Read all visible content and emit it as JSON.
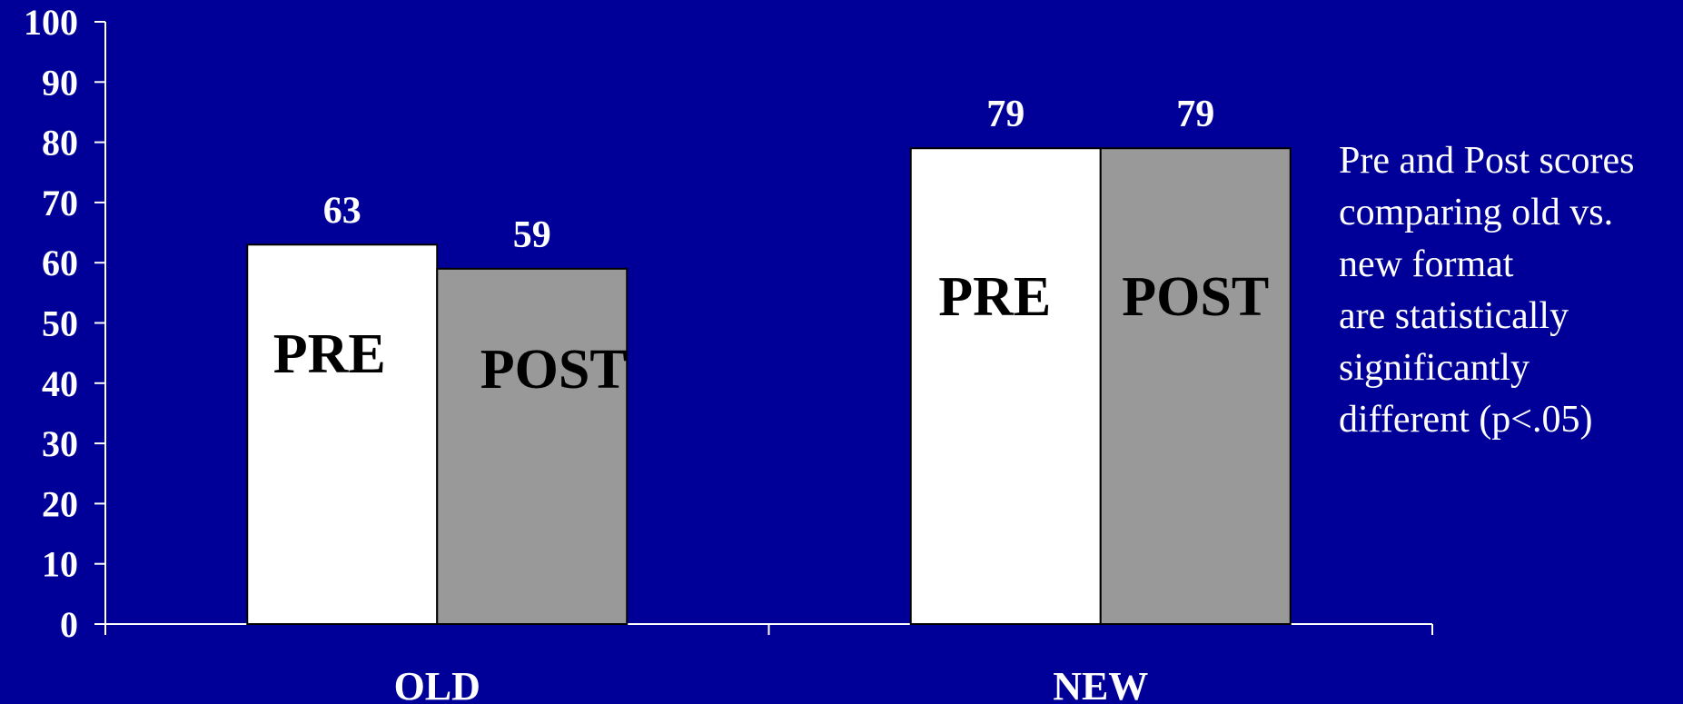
{
  "colors": {
    "background": "#000099",
    "axis": "#ffffff",
    "pre_bar": "#ffffff",
    "post_bar": "#999999",
    "bar_outline": "#000000",
    "text": "#ffffff",
    "bar_text": "#000000"
  },
  "chart_data": {
    "type": "bar",
    "categories": [
      "OLD",
      "NEW"
    ],
    "series": [
      {
        "name": "PRE",
        "values": [
          63,
          79
        ],
        "color": "#ffffff"
      },
      {
        "name": "POST",
        "values": [
          59,
          79
        ],
        "color": "#999999"
      }
    ],
    "value_labels": [
      [
        "63",
        "79"
      ],
      [
        "59",
        "79"
      ]
    ],
    "bar_labels": [
      [
        "PRE",
        "PRE"
      ],
      [
        "POST",
        "POST"
      ]
    ],
    "yticks": [
      "0",
      "10",
      "20",
      "30",
      "40",
      "50",
      "60",
      "70",
      "80",
      "90",
      "100"
    ],
    "ylim": [
      0,
      100
    ],
    "title": "",
    "xlabel": "",
    "ylabel": "",
    "grid": false,
    "legend": "none",
    "annotation": [
      "Pre and Post scores",
      "comparing old vs.",
      "new format",
      "are statistically",
      "significantly",
      "different (p<.05)"
    ]
  }
}
